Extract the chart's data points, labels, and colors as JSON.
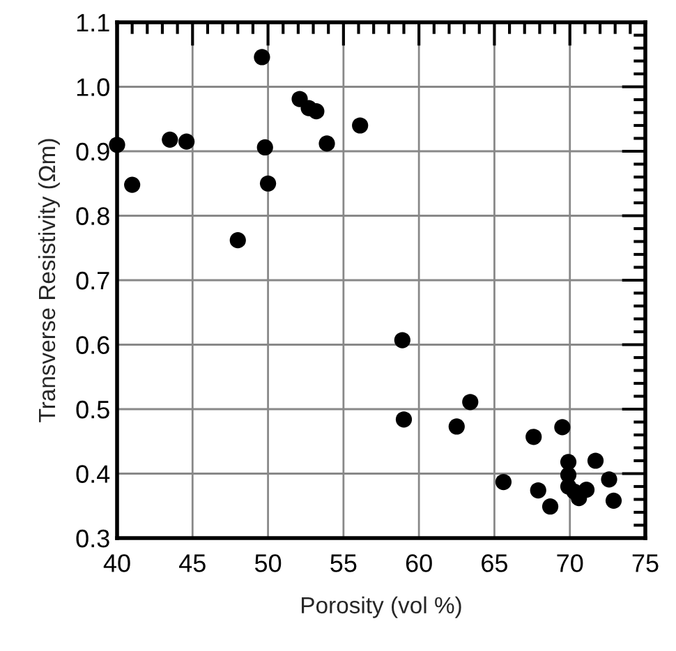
{
  "chart_data": {
    "type": "scatter",
    "xlabel": "Porosity (vol %)",
    "ylabel": "Transverse Resistivity (Ωm)",
    "x": [
      40.0,
      41.0,
      43.5,
      44.6,
      48.0,
      49.6,
      49.8,
      50.0,
      52.1,
      52.7,
      53.2,
      53.9,
      56.1,
      58.9,
      59.0,
      62.5,
      63.4,
      65.6,
      67.6,
      67.9,
      68.7,
      69.5,
      69.9,
      69.9,
      69.9,
      70.3,
      70.6,
      71.1,
      71.7,
      72.6,
      72.9
    ],
    "series": [
      {
        "color": "#000000",
        "values": [
          0.91,
          0.848,
          0.918,
          0.915,
          0.762,
          1.046,
          0.906,
          0.85,
          0.981,
          0.967,
          0.962,
          0.912,
          0.94,
          0.607,
          0.484,
          0.473,
          0.511,
          0.387,
          0.457,
          0.374,
          0.349,
          0.472,
          0.418,
          0.398,
          0.38,
          0.372,
          0.362,
          0.375,
          0.42,
          0.391,
          0.358
        ]
      }
    ],
    "xlim": [
      40,
      75
    ],
    "xticks": [
      40,
      45,
      50,
      55,
      60,
      65,
      70,
      75
    ],
    "ylim": [
      0.3,
      1.1
    ],
    "yticks": [
      {
        "value": 0.3,
        "label": "0.3"
      },
      {
        "value": 0.4,
        "label": "0.4"
      },
      {
        "value": 0.5,
        "label": "0.5"
      },
      {
        "value": 0.6,
        "label": "0.6"
      },
      {
        "value": 0.7,
        "label": "0.7"
      },
      {
        "value": 0.8,
        "label": "0.8"
      },
      {
        "value": 0.9,
        "label": "0.9"
      },
      {
        "value": 1.0,
        "label": "1.0"
      },
      {
        "value": 1.1,
        "label": "1.1"
      }
    ],
    "grid": true,
    "marker": "circle"
  }
}
